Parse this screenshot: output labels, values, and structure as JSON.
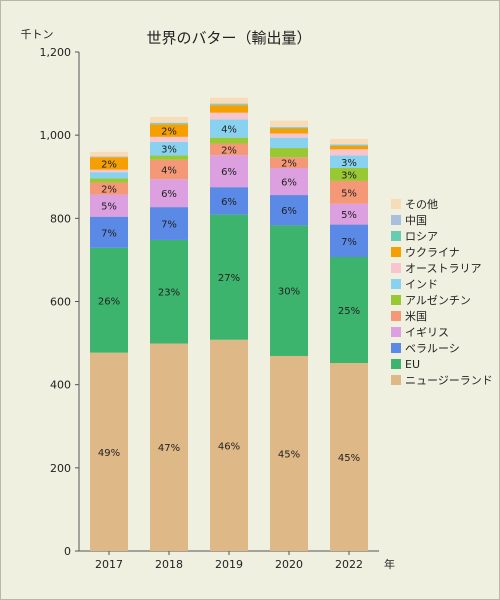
{
  "chart_data": {
    "type": "bar",
    "stacked": true,
    "title": "世界のバター（輸出量）",
    "ylabel": "千トン",
    "xlabel": "年",
    "ylim": [
      0,
      1200
    ],
    "yticks": [
      0,
      200,
      400,
      600,
      800,
      1000,
      1200
    ],
    "ytick_labels": [
      "0",
      "200",
      "400",
      "600",
      "800",
      "1,000",
      "1,200"
    ],
    "grid": false,
    "legend_position": "right",
    "categories": [
      "2017",
      "2018",
      "2019",
      "2020",
      "2022"
    ],
    "series": [
      {
        "name": "ニュージーランド",
        "color": "#dfb887",
        "values": [
          477,
          499,
          508,
          469,
          452
        ],
        "labels": [
          "49%",
          "47%",
          "46%",
          "45%",
          "45%"
        ]
      },
      {
        "name": "EU",
        "color": "#3cb46e",
        "values": [
          252,
          249,
          301,
          314,
          255
        ],
        "labels": [
          "26%",
          "23%",
          "27%",
          "30%",
          "25%"
        ]
      },
      {
        "name": "ベラルーシ",
        "color": "#5b8ae6",
        "values": [
          75,
          79,
          66,
          73,
          78
        ],
        "labels": [
          "7%",
          "7%",
          "6%",
          "6%",
          "7%"
        ]
      },
      {
        "name": "イギリス",
        "color": "#dca0e0",
        "values": [
          53,
          67,
          77,
          65,
          50
        ],
        "labels": [
          "5%",
          "6%",
          "6%",
          "6%",
          "5%"
        ]
      },
      {
        "name": "米国",
        "color": "#f59878",
        "values": [
          29,
          47,
          28,
          26,
          55
        ],
        "labels": [
          "2%",
          "4%",
          "2%",
          "2%",
          "5%"
        ]
      },
      {
        "name": "アルゼンチン",
        "color": "#98c832",
        "values": [
          10,
          10,
          14,
          22,
          31
        ],
        "labels": [
          "",
          "",
          "",
          "",
          "3%"
        ]
      },
      {
        "name": "インド",
        "color": "#88d2f0",
        "values": [
          15,
          33,
          44,
          25,
          30
        ],
        "labels": [
          "",
          "3%",
          "4%",
          "",
          "3%"
        ]
      },
      {
        "name": "オーストラリア",
        "color": "#f8c4d0",
        "values": [
          6,
          12,
          16,
          10,
          15
        ],
        "labels": [
          "",
          "",
          "",
          "",
          ""
        ]
      },
      {
        "name": "ウクライナ",
        "color": "#f5a000",
        "values": [
          30,
          30,
          18,
          12,
          8
        ],
        "labels": [
          "2%",
          "2%",
          "",
          "",
          ""
        ]
      },
      {
        "name": "ロシア",
        "color": "#66ccb4",
        "values": [
          0,
          2,
          2,
          2,
          2
        ],
        "labels": [
          "",
          "",
          "",
          "",
          ""
        ]
      },
      {
        "name": "中国",
        "color": "#a8c0dc",
        "values": [
          2,
          2,
          2,
          2,
          2
        ],
        "labels": [
          "",
          "",
          "",
          "",
          ""
        ]
      },
      {
        "name": "その他",
        "color": "#f8dcb8",
        "values": [
          11,
          14,
          14,
          15,
          13
        ],
        "labels": [
          "",
          "",
          "",
          "",
          ""
        ]
      }
    ]
  }
}
